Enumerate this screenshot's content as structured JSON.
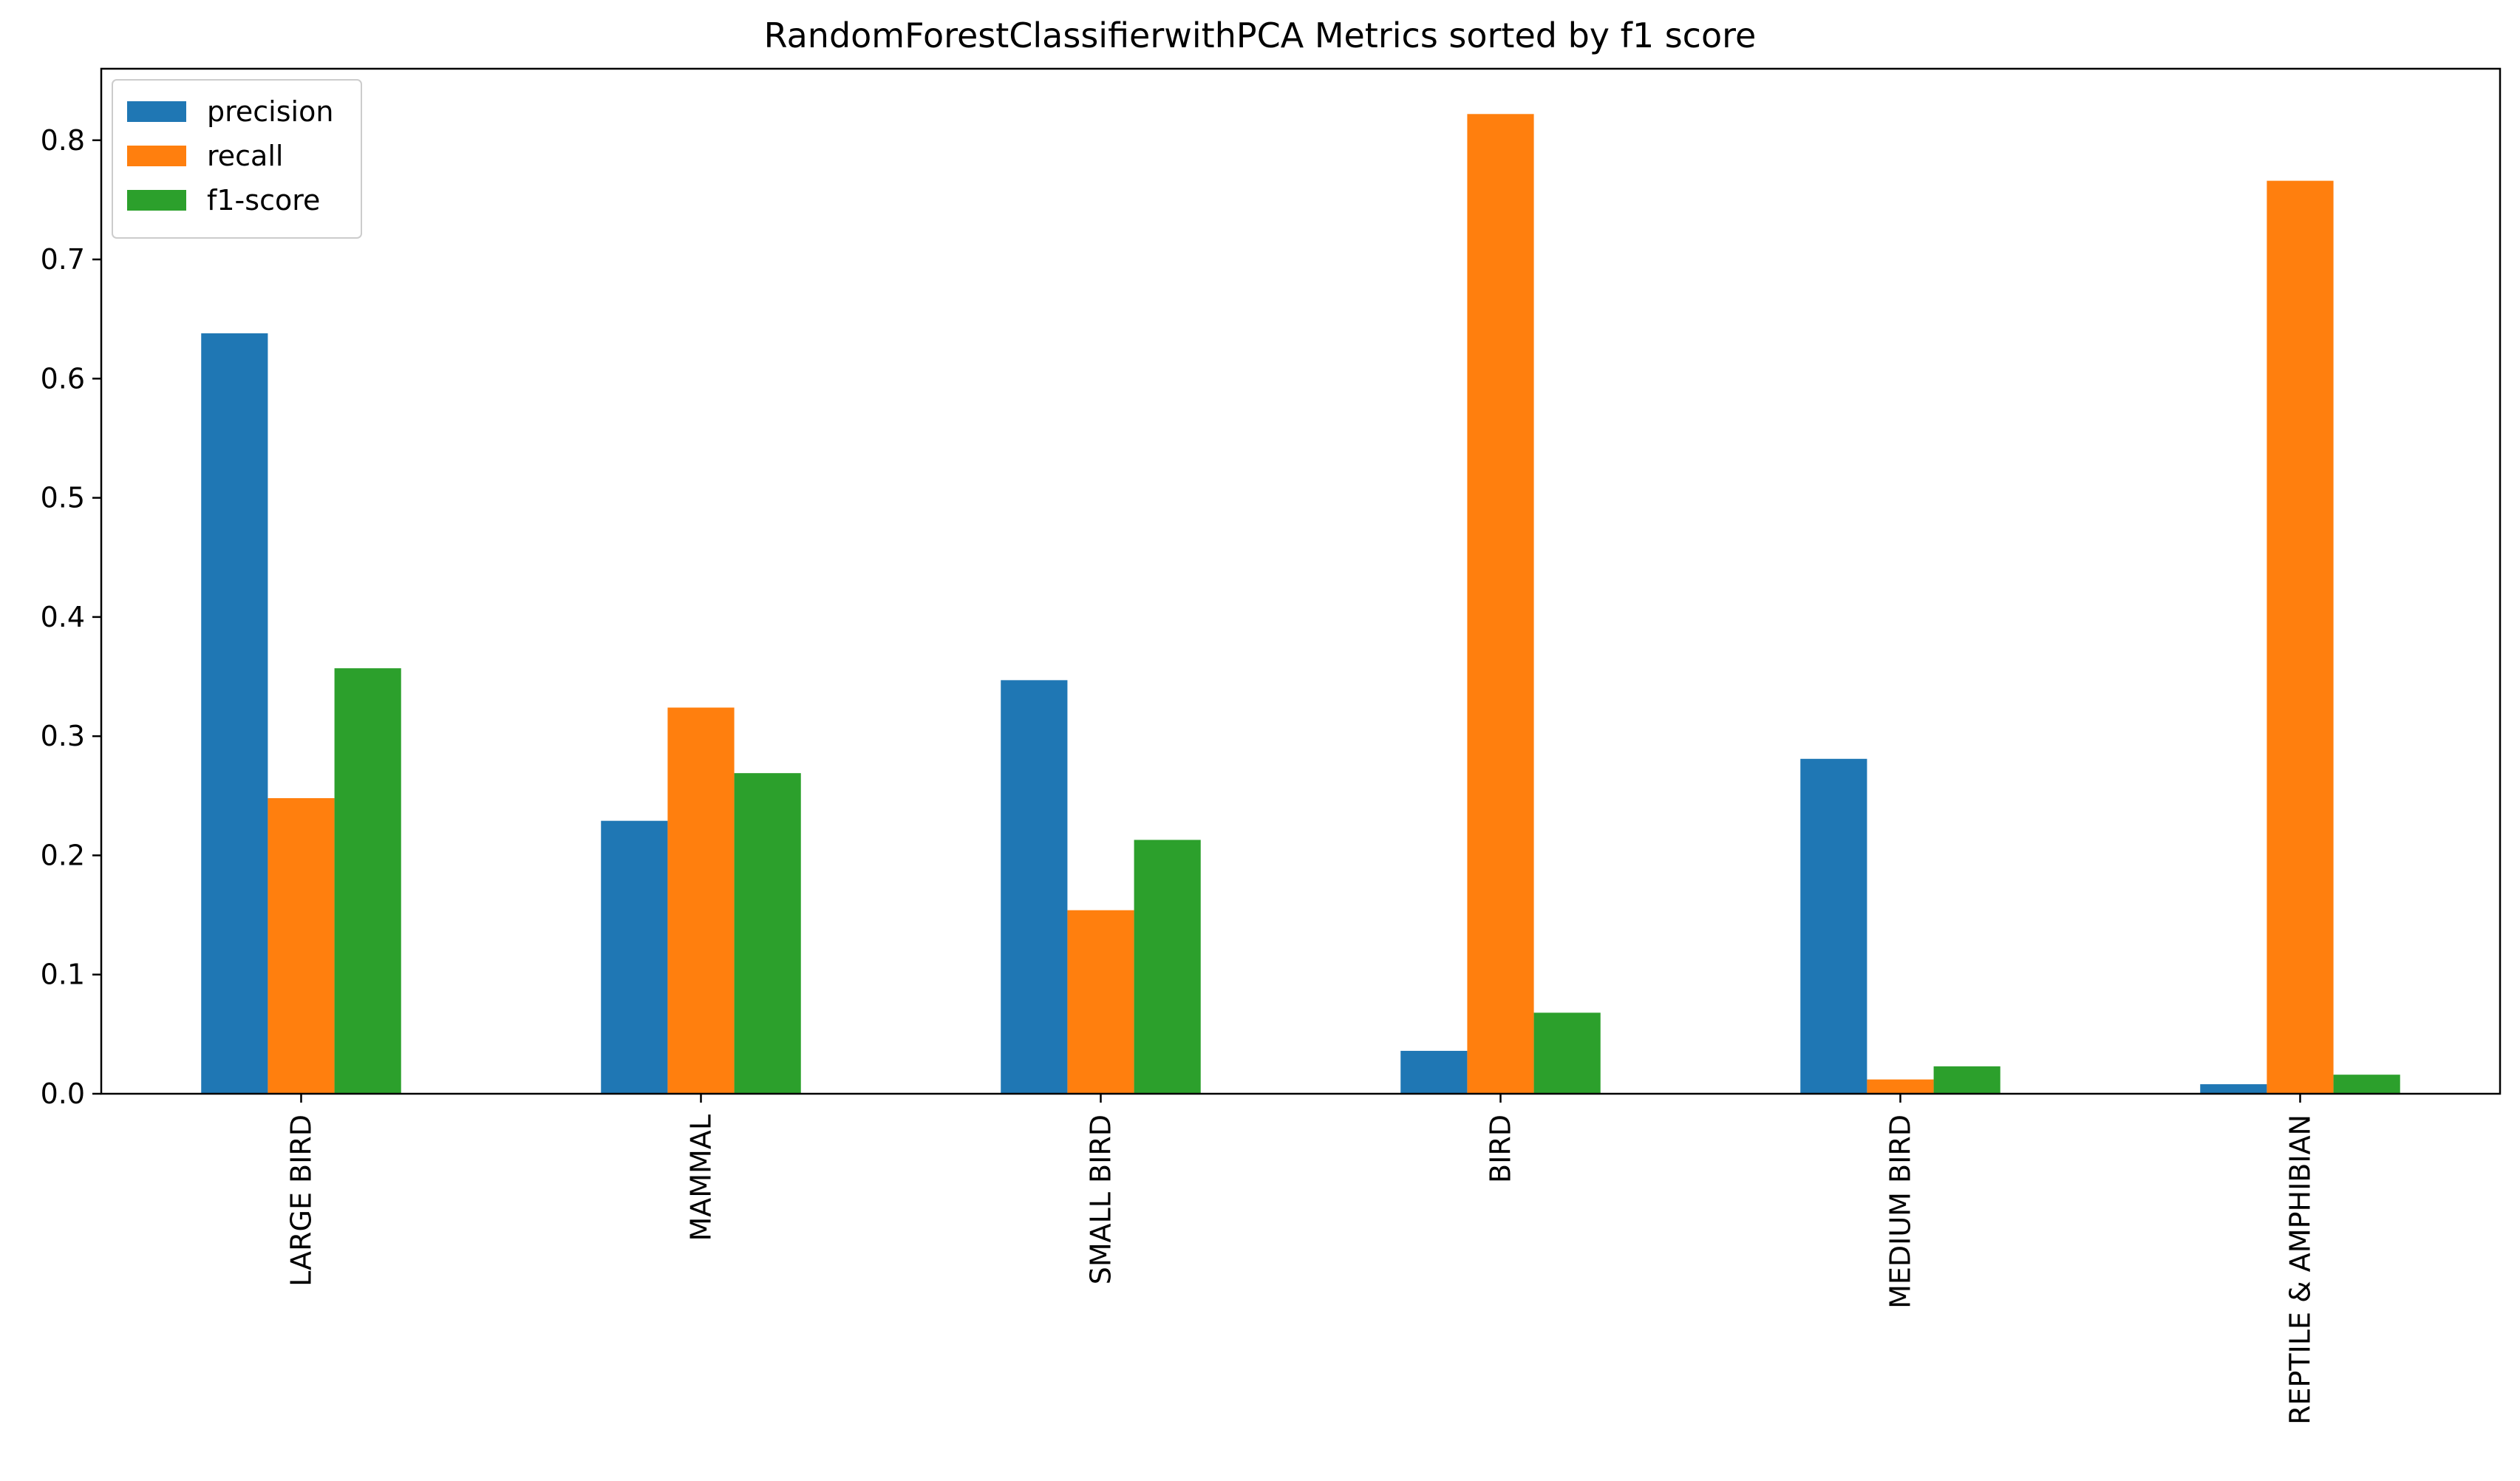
{
  "chart_data": {
    "type": "bar",
    "title": "RandomForestClassifierwithPCA Metrics sorted by f1 score",
    "xlabel": "",
    "ylabel": "",
    "categories": [
      "LARGE BIRD",
      "MAMMAL",
      "SMALL BIRD",
      "BIRD",
      "MEDIUM BIRD",
      "REPTILE & AMPHIBIAN"
    ],
    "series": [
      {
        "name": "precision",
        "color": "#1f77b4",
        "values": [
          0.638,
          0.229,
          0.347,
          0.036,
          0.281,
          0.008
        ]
      },
      {
        "name": "recall",
        "color": "#ff7f0e",
        "values": [
          0.248,
          0.324,
          0.154,
          0.822,
          0.012,
          0.766
        ]
      },
      {
        "name": "f1-score",
        "color": "#2ca02c",
        "values": [
          0.357,
          0.269,
          0.213,
          0.068,
          0.023,
          0.016
        ]
      }
    ],
    "ylim": [
      0,
      0.86
    ],
    "yticks": [
      0.0,
      0.1,
      0.2,
      0.3,
      0.4,
      0.5,
      0.6,
      0.7,
      0.8
    ],
    "ytick_labels": [
      "0.0",
      "0.1",
      "0.2",
      "0.3",
      "0.4",
      "0.5",
      "0.6",
      "0.7",
      "0.8"
    ],
    "legend_position": "top-left",
    "grid": false
  }
}
